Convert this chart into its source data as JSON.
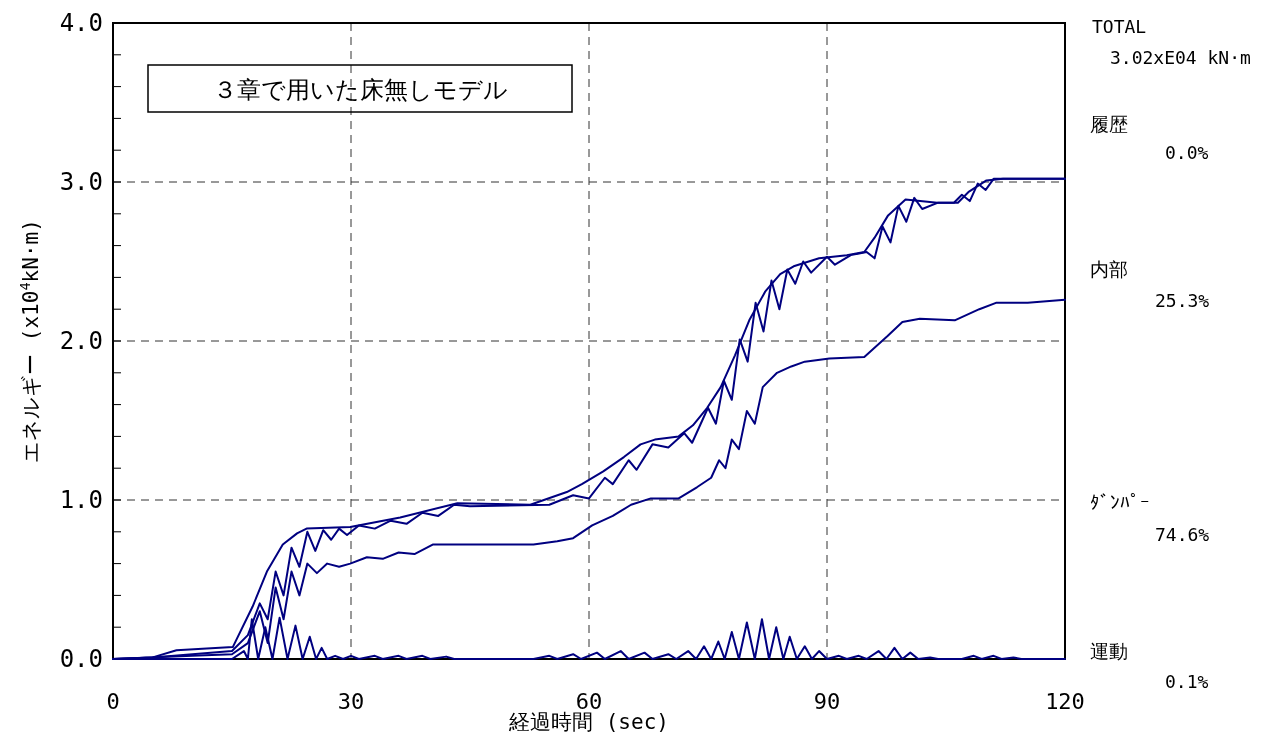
{
  "chart_data": {
    "type": "line",
    "xlabel": "経過時間      (sec)",
    "ylabel": "エネルギー     (x10$^{4}$kN·m)",
    "xlim": [
      0,
      120
    ],
    "ylim": [
      0,
      4
    ],
    "xticks": [
      0,
      30,
      60,
      90,
      120
    ],
    "yticks": [
      {
        "value": 0,
        "label": "0.0"
      },
      {
        "value": 0.2,
        "label": null
      },
      {
        "value": 0.4,
        "label": null
      },
      {
        "value": 0.6,
        "label": null
      },
      {
        "value": 0.8,
        "label": null
      },
      {
        "value": 1,
        "label": "1.0"
      },
      {
        "value": 1.2,
        "label": null
      },
      {
        "value": 1.4,
        "label": null
      },
      {
        "value": 1.6,
        "label": null
      },
      {
        "value": 1.8,
        "label": null
      },
      {
        "value": 2,
        "label": "2.0"
      },
      {
        "value": 2.2,
        "label": null
      },
      {
        "value": 2.4,
        "label": null
      },
      {
        "value": 2.6,
        "label": null
      },
      {
        "value": 2.8,
        "label": null
      },
      {
        "value": 3,
        "label": "3.0"
      },
      {
        "value": 3.2,
        "label": null
      },
      {
        "value": 3.4,
        "label": null
      },
      {
        "value": 3.6,
        "label": null
      },
      {
        "value": 3.8,
        "label": null
      },
      {
        "value": 4,
        "label": "4.0"
      }
    ],
    "grid": true,
    "marker": "none",
    "line_style": "solid",
    "annotations": [
      "３章で用いた床無しモデル",
      "TOTAL",
      "3.02xE04 kN·m",
      "履歴",
      "0.0%",
      "内部",
      "25.3%",
      "ﾀﾞﾝﾊﾟｰ",
      "74.6%",
      "運動",
      "0.1%"
    ],
    "series": [
      {
        "color": "#000080",
        "x": [
          0,
          5,
          8,
          15.1,
          17.6,
          19.4,
          21.4,
          23.2,
          24.4,
          29.9,
          36.2,
          43.4,
          52.6,
          57.2,
          59.1,
          61.8,
          64.4,
          66.5,
          68.3,
          71.3,
          73.1,
          74.9,
          76.6,
          78.4,
          80.2,
          82.2,
          84.1,
          85.8,
          89,
          92.5,
          94.7,
          96,
          97.7,
          99.9,
          103.9,
          106.5,
          107.9,
          110.1,
          112.2,
          120
        ],
        "values": [
          0,
          0.01,
          0.055,
          0.075,
          0.33,
          0.55,
          0.72,
          0.79,
          0.82,
          0.83,
          0.89,
          0.98,
          0.97,
          1.05,
          1.1,
          1.18,
          1.27,
          1.35,
          1.38,
          1.4,
          1.47,
          1.58,
          1.71,
          1.91,
          2.13,
          2.31,
          2.42,
          2.47,
          2.52,
          2.54,
          2.56,
          2.65,
          2.79,
          2.89,
          2.87,
          2.87,
          2.94,
          3.01,
          3.02,
          3.02
        ]
      },
      {
        "color": "#000080",
        "x": [
          0,
          5,
          10,
          15,
          17,
          18.5,
          19.5,
          20.5,
          21.5,
          22.5,
          23.5,
          24.5,
          25.5,
          26.5,
          27.5,
          28.5,
          29.5,
          31,
          33,
          35,
          37,
          39,
          41,
          43,
          45,
          55,
          58,
          60,
          62,
          63,
          65,
          66,
          68,
          70,
          72,
          73,
          75,
          76,
          77,
          78,
          79,
          80,
          81,
          82,
          83,
          84,
          85,
          86,
          87,
          88,
          90,
          91,
          93,
          95,
          96,
          97,
          98,
          99,
          100,
          101,
          102,
          104,
          106,
          107,
          108,
          109,
          110,
          111,
          113,
          120
        ],
        "values": [
          0,
          0.01,
          0.03,
          0.05,
          0.15,
          0.35,
          0.25,
          0.55,
          0.4,
          0.7,
          0.58,
          0.8,
          0.68,
          0.81,
          0.75,
          0.82,
          0.78,
          0.84,
          0.82,
          0.87,
          0.85,
          0.92,
          0.9,
          0.97,
          0.96,
          0.97,
          1.03,
          1.01,
          1.14,
          1.1,
          1.25,
          1.19,
          1.35,
          1.33,
          1.42,
          1.36,
          1.58,
          1.48,
          1.75,
          1.63,
          2.01,
          1.87,
          2.24,
          2.06,
          2.38,
          2.2,
          2.45,
          2.36,
          2.5,
          2.43,
          2.53,
          2.48,
          2.54,
          2.56,
          2.52,
          2.72,
          2.62,
          2.85,
          2.75,
          2.9,
          2.83,
          2.87,
          2.87,
          2.92,
          2.88,
          2.99,
          2.95,
          3.02,
          3.02,
          3.02
        ]
      },
      {
        "color": "#000080",
        "x": [
          0,
          10,
          15,
          17,
          18.5,
          19.5,
          20.5,
          21.5,
          22.5,
          23.5,
          24.5,
          25.7,
          27,
          28.5,
          29.9,
          32,
          34,
          36,
          38,
          40.3,
          53,
          56,
          58,
          60.4,
          63,
          65.3,
          67.8,
          71.3,
          73.6,
          75.4,
          76.4,
          77.2,
          78,
          78.9,
          79.9,
          80.9,
          81.9,
          83.7,
          85.5,
          87.2,
          90.3,
          94.7,
          97.6,
          99.5,
          101.7,
          106.1,
          109.2,
          111.3,
          115.3,
          120
        ],
        "values": [
          0,
          0.02,
          0.03,
          0.1,
          0.3,
          0.1,
          0.45,
          0.25,
          0.55,
          0.4,
          0.6,
          0.54,
          0.6,
          0.58,
          0.6,
          0.64,
          0.63,
          0.67,
          0.66,
          0.72,
          0.72,
          0.74,
          0.76,
          0.84,
          0.9,
          0.97,
          1.01,
          1.01,
          1.08,
          1.14,
          1.25,
          1.2,
          1.38,
          1.32,
          1.56,
          1.48,
          1.71,
          1.8,
          1.84,
          1.87,
          1.89,
          1.9,
          2.03,
          2.12,
          2.14,
          2.13,
          2.2,
          2.24,
          2.24,
          2.26
        ]
      },
      {
        "color": "#000080",
        "x": [
          0,
          15,
          16.5,
          17,
          17.5,
          18.3,
          19.2,
          20.1,
          21,
          22,
          23,
          23.9,
          24.8,
          25.6,
          26.3,
          27,
          28,
          29,
          30,
          31,
          33,
          34,
          36,
          37,
          39,
          40,
          42,
          43,
          53,
          55,
          56,
          58,
          59,
          61,
          62,
          64,
          65,
          67,
          68,
          70,
          71,
          72.5,
          73.5,
          74.5,
          75.4,
          76.3,
          77.1,
          78,
          78.9,
          79.9,
          80.9,
          81.8,
          82.7,
          83.6,
          84.5,
          85.3,
          86.2,
          87.2,
          88.1,
          89,
          90,
          91.5,
          92.5,
          94,
          95,
          96.5,
          97.5,
          98.5,
          99.5,
          100.5,
          101.5,
          103,
          104,
          107,
          108.5,
          109.5,
          111,
          112,
          113.5,
          114.5,
          120
        ],
        "values": [
          0,
          0,
          0.05,
          0,
          0.25,
          0,
          0.2,
          0,
          0.26,
          0,
          0.21,
          0,
          0.14,
          0,
          0.07,
          0,
          0.02,
          0,
          0.02,
          0,
          0.02,
          0,
          0.02,
          0,
          0.02,
          0,
          0.015,
          0,
          0,
          0.02,
          0,
          0.03,
          0,
          0.04,
          0,
          0.05,
          0,
          0.04,
          0,
          0.03,
          0,
          0.05,
          0,
          0.08,
          0,
          0.11,
          0,
          0.17,
          0,
          0.23,
          0,
          0.25,
          0,
          0.2,
          0,
          0.14,
          0,
          0.08,
          0,
          0.05,
          0,
          0.02,
          0,
          0.02,
          0,
          0.05,
          0,
          0.07,
          0,
          0.04,
          0,
          0.01,
          0,
          0,
          0.02,
          0,
          0.02,
          0,
          0.01,
          0,
          0
        ]
      }
    ]
  }
}
